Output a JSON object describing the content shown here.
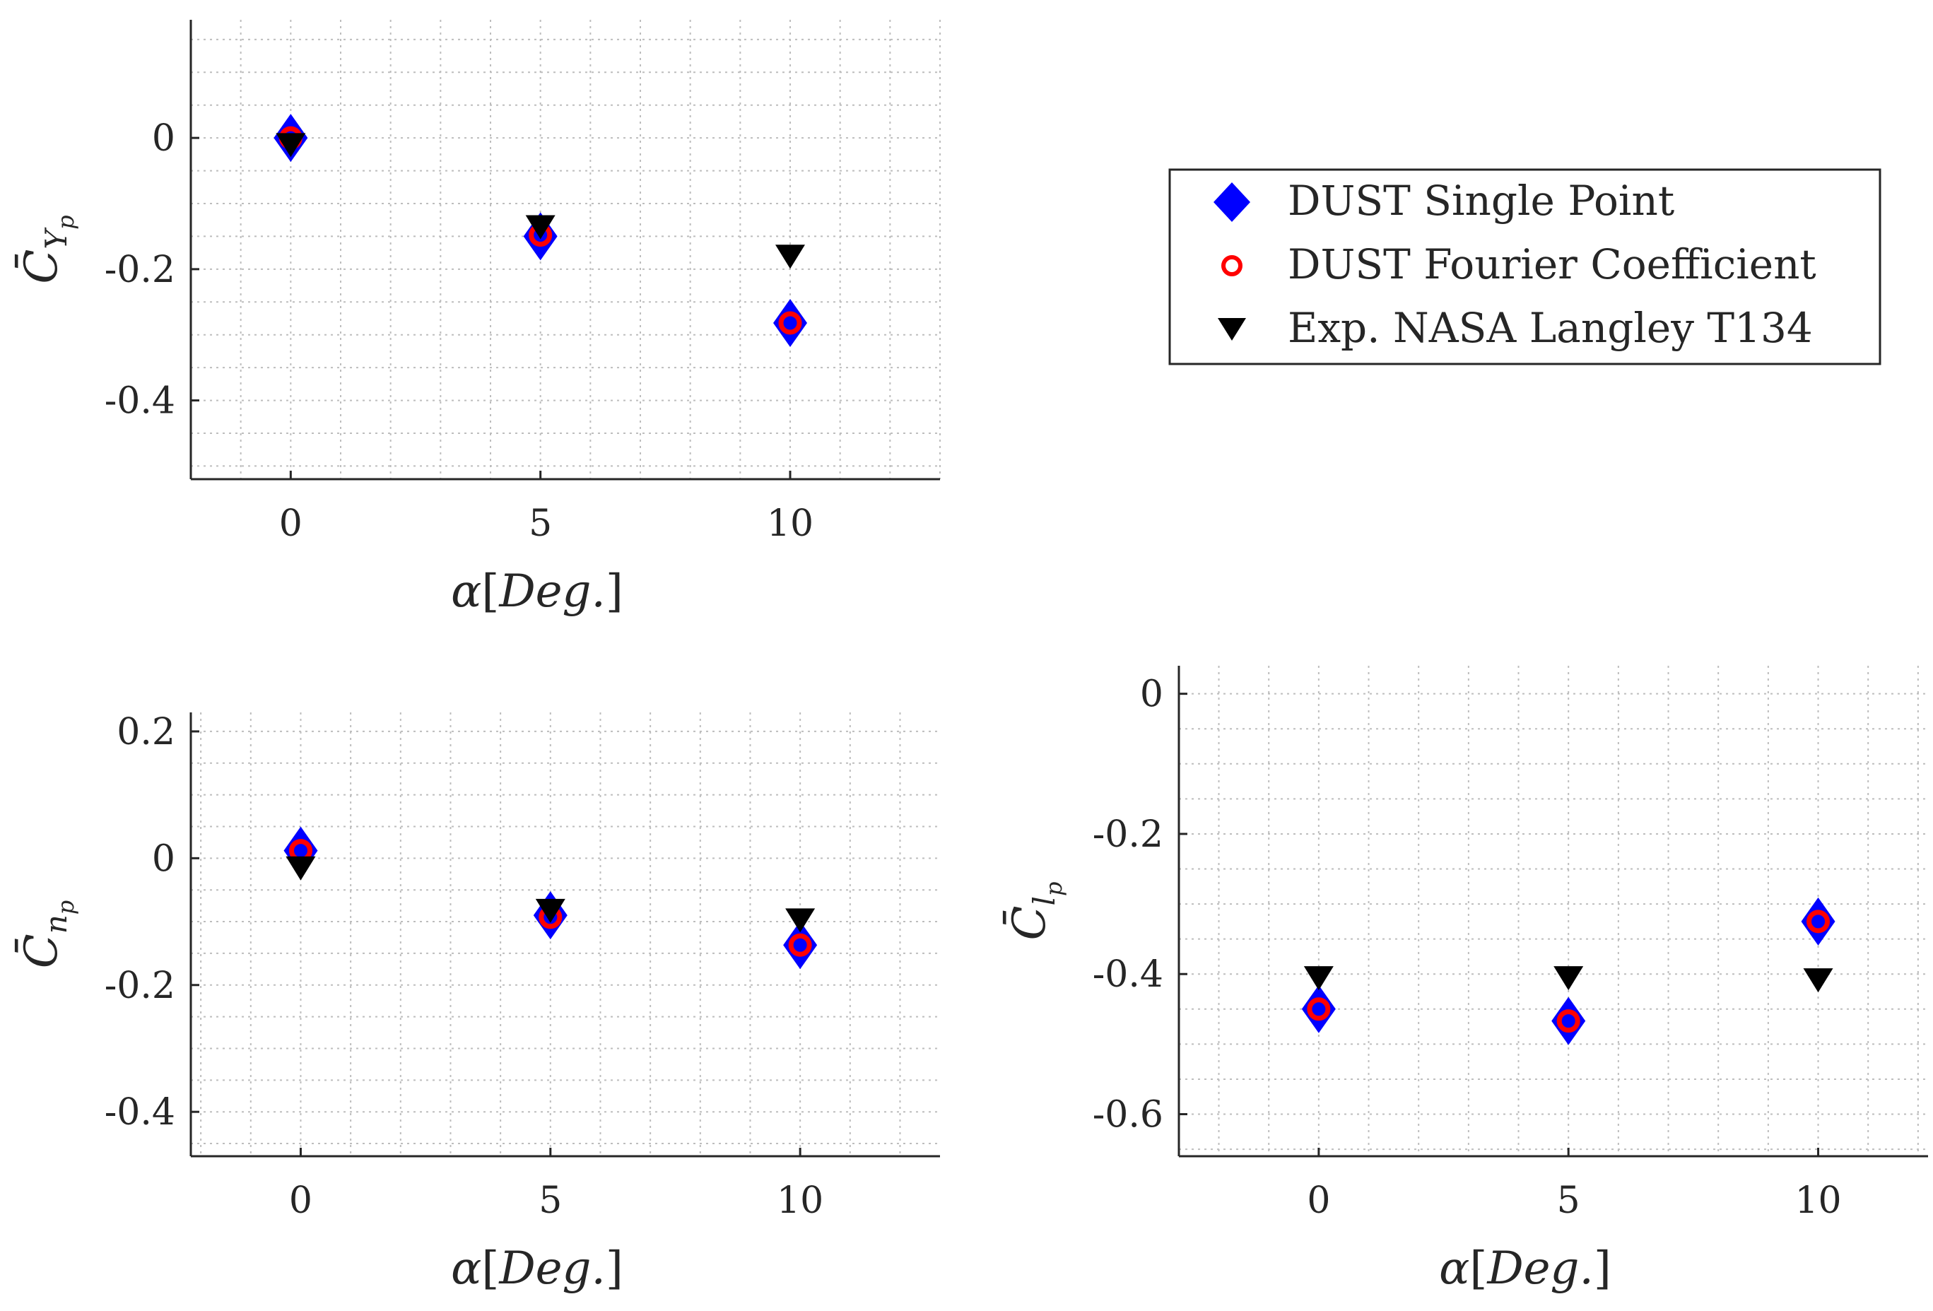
{
  "legend": {
    "entries": [
      {
        "label": "DUST Single Point",
        "marker": "diamond",
        "color": "#0000ff"
      },
      {
        "label": "DUST Fourier Coefficient",
        "marker": "circle",
        "color": "#ff0000"
      },
      {
        "label": "Exp. NASA Langley T134",
        "marker": "triangle-down",
        "color": "#000000"
      }
    ],
    "placement": "top-right"
  },
  "chart_data": [
    {
      "type": "scatter",
      "id": "cy",
      "title": "",
      "xlabel_parts": [
        "α",
        "[",
        "Deg.",
        "]"
      ],
      "ylabel_parts": [
        "C̄",
        "Y",
        "p"
      ],
      "xlim": [
        -2,
        13
      ],
      "ylim": [
        -0.52,
        0.18
      ],
      "xticks": [
        0,
        5,
        10
      ],
      "xtick_labels": [
        "0",
        "5",
        "10"
      ],
      "yticks": [
        0,
        -0.2,
        -0.4
      ],
      "ytick_labels": [
        "0",
        "-0.2",
        "-0.4"
      ],
      "grid": true,
      "x": [
        0,
        5,
        10
      ],
      "series": [
        {
          "name": "DUST Single Point",
          "values": [
            0.0,
            -0.15,
            -0.282
          ]
        },
        {
          "name": "DUST Fourier Coefficient",
          "values": [
            0.0,
            -0.148,
            -0.282
          ]
        },
        {
          "name": "Exp. NASA Langley T134",
          "values": [
            -0.01,
            -0.135,
            -0.18
          ]
        }
      ]
    },
    {
      "type": "scatter",
      "id": "cn",
      "title": "",
      "xlabel_parts": [
        "α",
        "[",
        "Deg.",
        "]"
      ],
      "ylabel_parts": [
        "C̄",
        "n",
        "p"
      ],
      "xlim": [
        -2.2,
        12.8
      ],
      "ylim": [
        -0.47,
        0.23
      ],
      "xticks": [
        0,
        5,
        10
      ],
      "xtick_labels": [
        "0",
        "5",
        "10"
      ],
      "yticks": [
        0.2,
        0,
        -0.2,
        -0.4
      ],
      "ytick_labels": [
        "0.2",
        "0",
        "-0.2",
        "-0.4"
      ],
      "grid": true,
      "x": [
        0,
        5,
        10
      ],
      "series": [
        {
          "name": "DUST Single Point",
          "values": [
            0.012,
            -0.09,
            -0.137
          ]
        },
        {
          "name": "DUST Fourier Coefficient",
          "values": [
            0.012,
            -0.093,
            -0.137
          ]
        },
        {
          "name": "Exp. NASA Langley T134",
          "values": [
            -0.015,
            -0.082,
            -0.097
          ]
        }
      ]
    },
    {
      "type": "scatter",
      "id": "cl",
      "title": "",
      "xlabel_parts": [
        "α",
        "[",
        "Deg.",
        "]"
      ],
      "ylabel_parts": [
        "C̄",
        "l",
        "p"
      ],
      "xlim": [
        -2.8,
        12.2
      ],
      "ylim": [
        -0.66,
        0.04
      ],
      "xticks": [
        0,
        5,
        10
      ],
      "xtick_labels": [
        "0",
        "5",
        "10"
      ],
      "yticks": [
        0,
        -0.2,
        -0.4,
        -0.6
      ],
      "ytick_labels": [
        "0",
        "-0.2",
        "-0.4",
        "-0.6"
      ],
      "grid": true,
      "x": [
        0,
        5,
        10
      ],
      "series": [
        {
          "name": "DUST Single Point",
          "values": [
            -0.45,
            -0.467,
            -0.325
          ]
        },
        {
          "name": "DUST Fourier Coefficient",
          "values": [
            -0.45,
            -0.467,
            -0.325
          ]
        },
        {
          "name": "Exp. NASA Langley T134",
          "values": [
            -0.405,
            -0.405,
            -0.408
          ]
        }
      ]
    }
  ]
}
